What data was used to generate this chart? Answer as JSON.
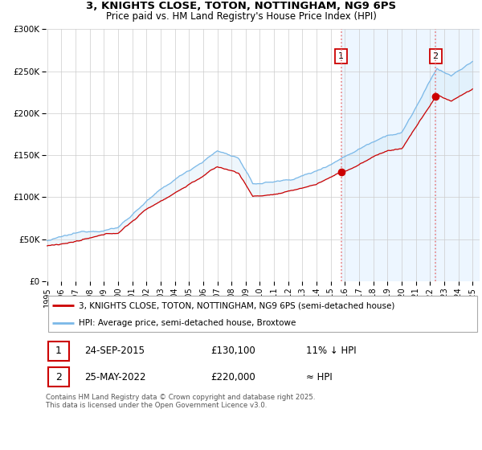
{
  "title": "3, KNIGHTS CLOSE, TOTON, NOTTINGHAM, NG9 6PS",
  "subtitle": "Price paid vs. HM Land Registry's House Price Index (HPI)",
  "legend_label1": "3, KNIGHTS CLOSE, TOTON, NOTTINGHAM, NG9 6PS (semi-detached house)",
  "legend_label2": "HPI: Average price, semi-detached house, Broxtowe",
  "annotation1_num": "1",
  "annotation1_date": "24-SEP-2015",
  "annotation1_price": "£130,100",
  "annotation1_rel": "11% ↓ HPI",
  "annotation2_num": "2",
  "annotation2_date": "25-MAY-2022",
  "annotation2_price": "£220,000",
  "annotation2_rel": "≈ HPI",
  "footer": "Contains HM Land Registry data © Crown copyright and database right 2025.\nThis data is licensed under the Open Government Licence v3.0.",
  "xmin": 1995,
  "xmax": 2025,
  "ymin": 0,
  "ymax": 300000,
  "yticks": [
    0,
    50000,
    100000,
    150000,
    200000,
    250000,
    300000
  ],
  "ytick_labels": [
    "£0",
    "£50K",
    "£100K",
    "£150K",
    "£200K",
    "£250K",
    "£300K"
  ],
  "xticks": [
    1995,
    1996,
    1997,
    1998,
    1999,
    2000,
    2001,
    2002,
    2003,
    2004,
    2005,
    2006,
    2007,
    2008,
    2009,
    2010,
    2011,
    2012,
    2013,
    2014,
    2015,
    2016,
    2017,
    2018,
    2019,
    2020,
    2021,
    2022,
    2023,
    2024,
    2025
  ],
  "line1_color": "#cc0000",
  "line2_color": "#7ab8e8",
  "shade_color": "#d0e8f8",
  "vline_color": "#e88080",
  "marker1_year": 2015.73,
  "marker1_value": 130100,
  "marker2_year": 2022.39,
  "marker2_value": 220000,
  "vline1_year": 2015.73,
  "vline2_year": 2022.39,
  "background_color": "#ffffff",
  "plot_bg_color": "#ffffff",
  "grid_color": "#cccccc",
  "span_color": "#ddeeff"
}
